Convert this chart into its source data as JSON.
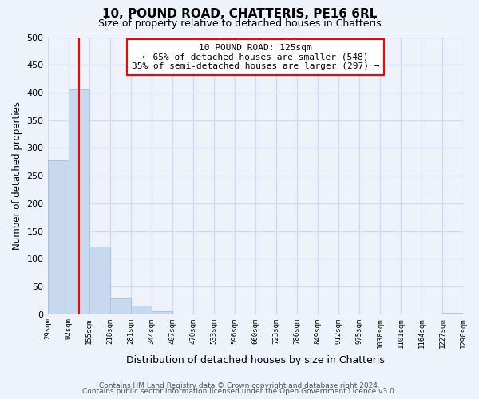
{
  "title": "10, POUND ROAD, CHATTERIS, PE16 6RL",
  "subtitle": "Size of property relative to detached houses in Chatteris",
  "xlabel": "Distribution of detached houses by size in Chatteris",
  "ylabel": "Number of detached properties",
  "bins": [
    29,
    92,
    155,
    218,
    281,
    344,
    407,
    470,
    533,
    596,
    660,
    723,
    786,
    849,
    912,
    975,
    1038,
    1101,
    1164,
    1227,
    1290
  ],
  "counts": [
    277,
    405,
    122,
    29,
    15,
    5,
    0,
    0,
    0,
    0,
    0,
    0,
    0,
    0,
    0,
    0,
    0,
    0,
    0,
    2
  ],
  "bar_color": "#c8d8ee",
  "bar_edge_color": "#adc4e0",
  "property_line_x": 125,
  "property_line_color": "red",
  "annotation_title": "10 POUND ROAD: 125sqm",
  "annotation_line1": "← 65% of detached houses are smaller (548)",
  "annotation_line2": "35% of semi-detached houses are larger (297) →",
  "annotation_box_color": "white",
  "annotation_box_edge_color": "red",
  "ylim": [
    0,
    500
  ],
  "xlim": [
    29,
    1290
  ],
  "tick_labels": [
    "29sqm",
    "92sqm",
    "155sqm",
    "218sqm",
    "281sqm",
    "344sqm",
    "407sqm",
    "470sqm",
    "533sqm",
    "596sqm",
    "660sqm",
    "723sqm",
    "786sqm",
    "849sqm",
    "912sqm",
    "975sqm",
    "1038sqm",
    "1101sqm",
    "1164sqm",
    "1227sqm",
    "1290sqm"
  ],
  "footer_line1": "Contains HM Land Registry data © Crown copyright and database right 2024.",
  "footer_line2": "Contains public sector information licensed under the Open Government Licence v3.0.",
  "background_color": "#eef2fa",
  "grid_color": "#d0daf0",
  "title_fontsize": 11,
  "subtitle_fontsize": 9,
  "footer_fontsize": 6.5
}
